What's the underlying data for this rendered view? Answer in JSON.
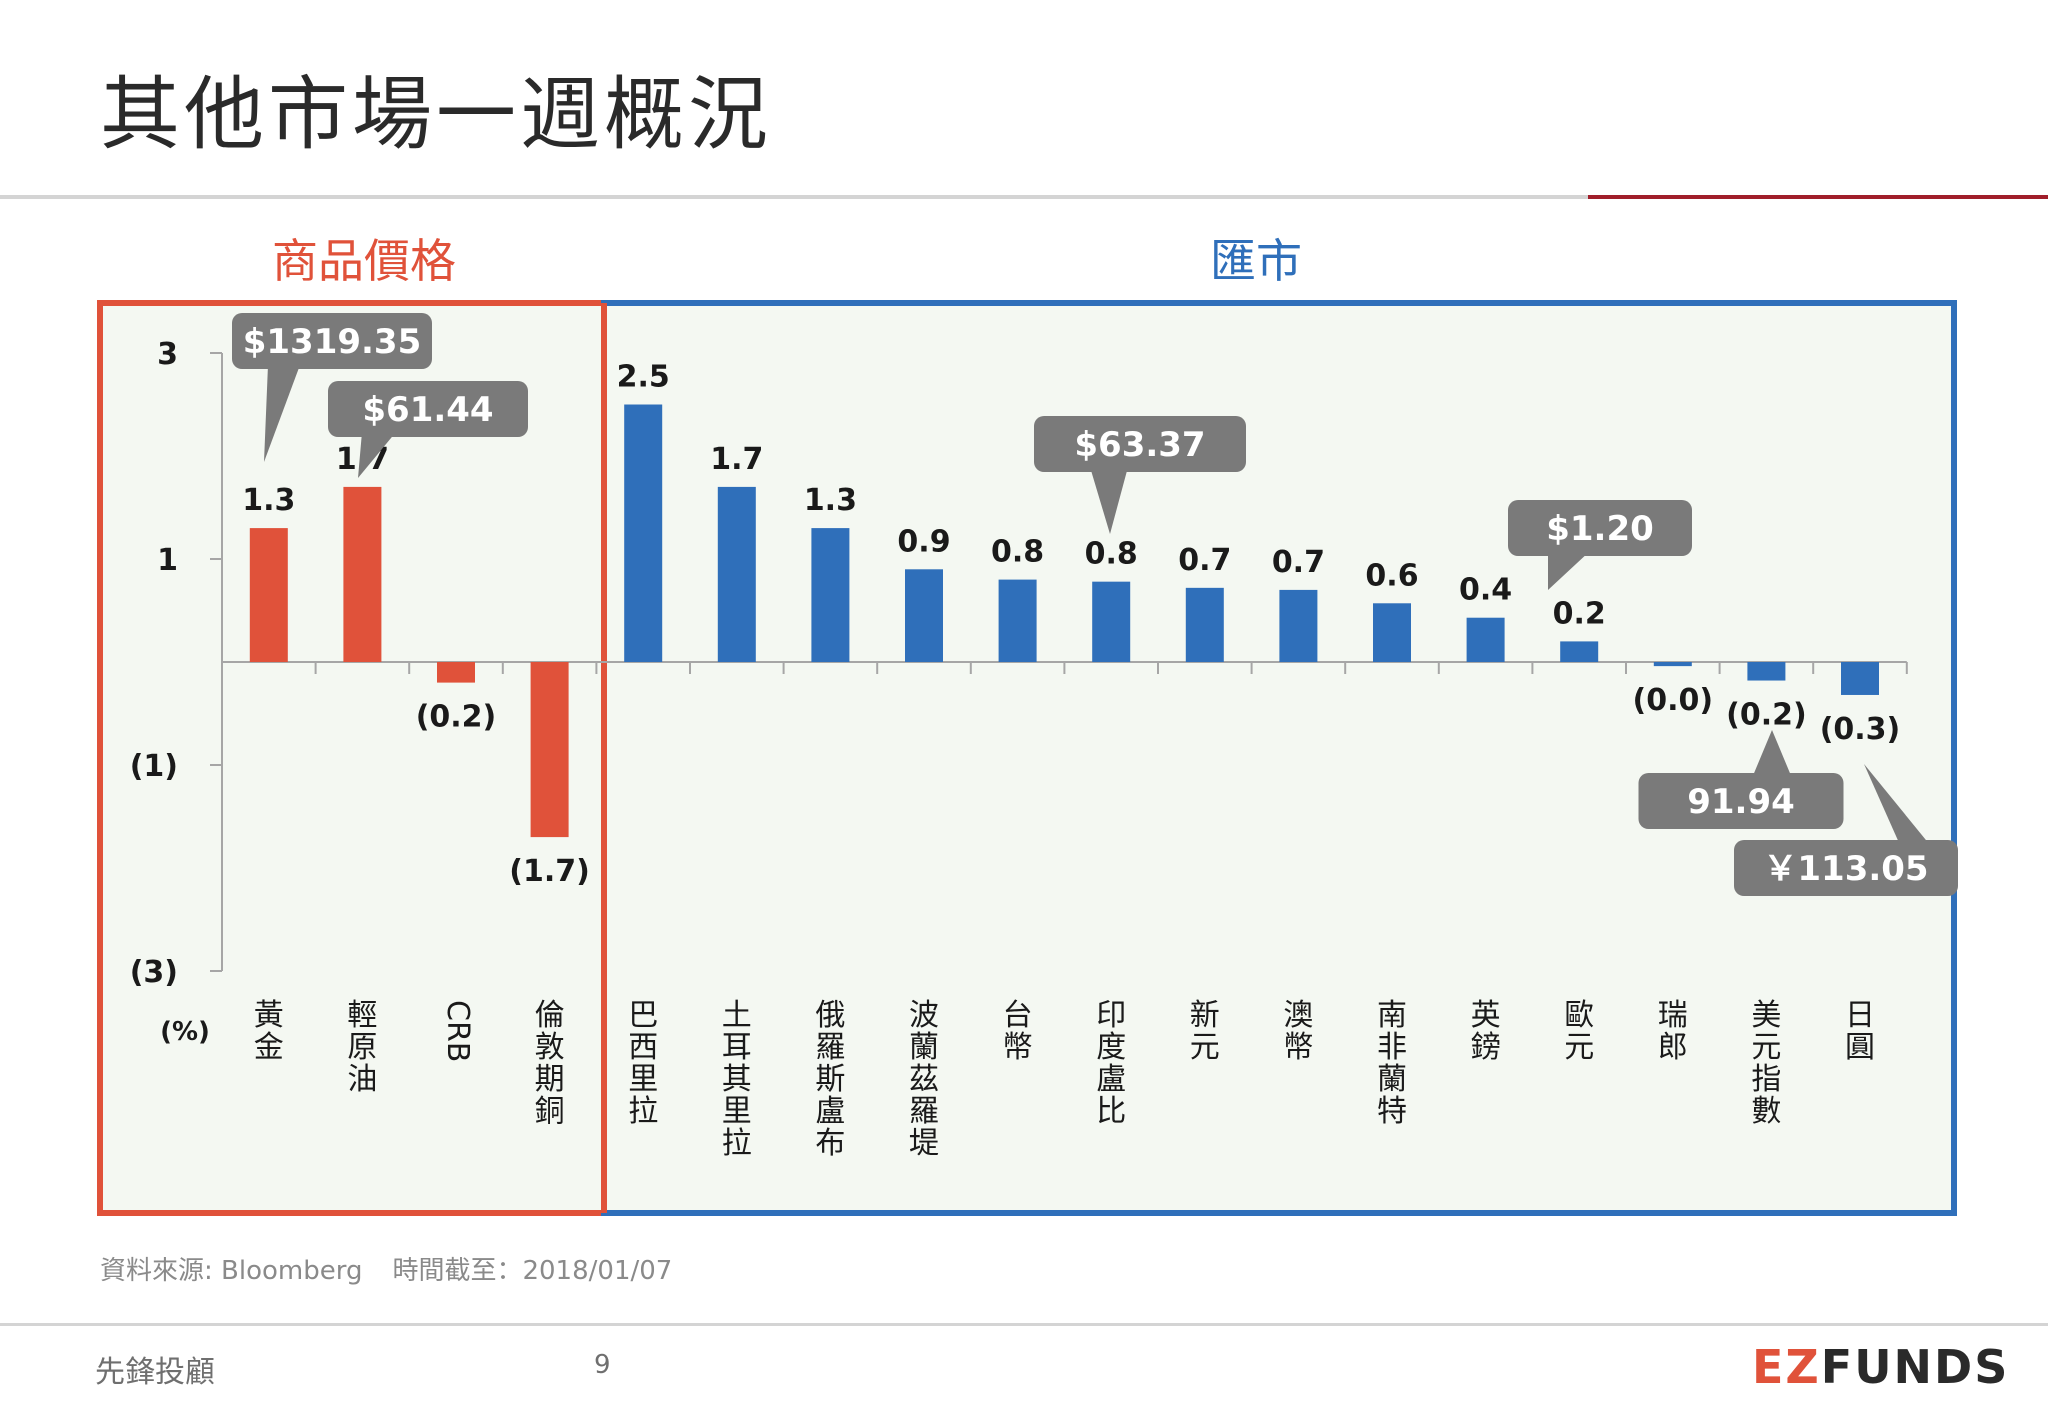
{
  "page": {
    "title": "其他市場一週概況",
    "page_number": "9",
    "company": "先鋒投顧",
    "logo": {
      "ez": "EZ",
      "funds": "FUNDS"
    },
    "source": {
      "label": "資料來源: Bloomberg",
      "date": "時間截至：2018/01/07"
    }
  },
  "sections": {
    "commodity": "商品價格",
    "fx": "匯市"
  },
  "colors": {
    "commodity": "#e0523a",
    "fx": "#2f6fba",
    "callout": "#7a7a7a",
    "plot_bg": "#f4f8f2"
  },
  "chart_data": {
    "type": "bar",
    "unit_label": "(%)",
    "ylim": [
      -3,
      3
    ],
    "yticks": [
      {
        "value": 3,
        "label": "3"
      },
      {
        "value": 1,
        "label": "1"
      },
      {
        "value": -1,
        "label": "(1)"
      },
      {
        "value": -3,
        "label": "(3)"
      }
    ],
    "categories": [
      {
        "name": "黃金",
        "value": 1.3,
        "label": "1.3",
        "group": "commodity"
      },
      {
        "name": "輕原油",
        "value": 1.7,
        "label": "1.7",
        "group": "commodity"
      },
      {
        "name": "CRB",
        "value": -0.2,
        "label": "(0.2)",
        "group": "commodity"
      },
      {
        "name": "倫敦期銅",
        "value": -1.7,
        "label": "(1.7)",
        "group": "commodity"
      },
      {
        "name": "巴西里拉",
        "value": 2.5,
        "label": "2.5",
        "group": "fx"
      },
      {
        "name": "土耳其里拉",
        "value": 1.7,
        "label": "1.7",
        "group": "fx"
      },
      {
        "name": "俄羅斯盧布",
        "value": 1.3,
        "label": "1.3",
        "group": "fx"
      },
      {
        "name": "波蘭茲羅堤",
        "value": 0.9,
        "label": "0.9",
        "group": "fx"
      },
      {
        "name": "台幣",
        "value": 0.8,
        "label": "0.8",
        "group": "fx"
      },
      {
        "name": "印度盧比",
        "value": 0.78,
        "label": "0.8",
        "group": "fx"
      },
      {
        "name": "新元",
        "value": 0.72,
        "label": "0.7",
        "group": "fx"
      },
      {
        "name": "澳幣",
        "value": 0.7,
        "label": "0.7",
        "group": "fx"
      },
      {
        "name": "南非蘭特",
        "value": 0.57,
        "label": "0.6",
        "group": "fx"
      },
      {
        "name": "英鎊",
        "value": 0.43,
        "label": "0.4",
        "group": "fx"
      },
      {
        "name": "歐元",
        "value": 0.2,
        "label": "0.2",
        "group": "fx"
      },
      {
        "name": "瑞郎",
        "value": -0.04,
        "label": "(0.0)",
        "group": "fx"
      },
      {
        "name": "美元指數",
        "value": -0.18,
        "label": "(0.2)",
        "group": "fx"
      },
      {
        "name": "日圓",
        "value": -0.32,
        "label": "(0.3)",
        "group": "fx"
      }
    ],
    "callouts": [
      {
        "text": "$1319.35",
        "target": "黃金"
      },
      {
        "text": "$61.44",
        "target": "輕原油"
      },
      {
        "text": "$63.37",
        "target": "印度盧比"
      },
      {
        "text": "$1.20",
        "target": "歐元"
      },
      {
        "text": "91.94",
        "target": "美元指數"
      },
      {
        "text": "￥113.05",
        "target": "日圓"
      }
    ]
  }
}
